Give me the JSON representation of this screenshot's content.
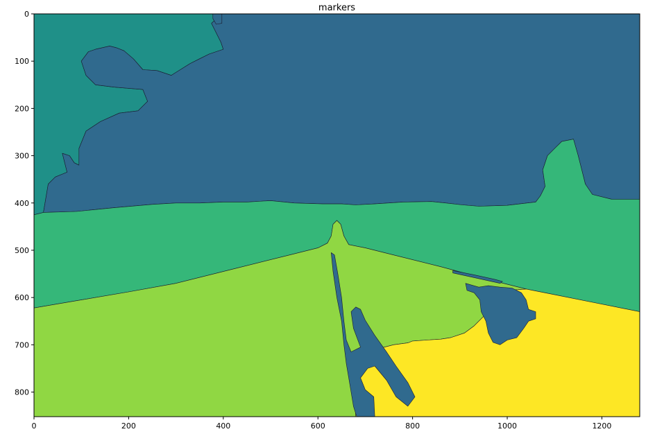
{
  "chart_data": {
    "type": "heatmap",
    "title": "markers",
    "xlabel": "",
    "ylabel": "",
    "xlim": [
      0,
      1280
    ],
    "ylim": [
      852,
      0
    ],
    "x_ticks": [
      0,
      200,
      400,
      600,
      800,
      1000,
      1200
    ],
    "x_tick_labels": [
      "0",
      "200",
      "400",
      "600",
      "800",
      "1000",
      "1200"
    ],
    "y_ticks": [
      0,
      100,
      200,
      300,
      400,
      500,
      600,
      700,
      800
    ],
    "y_tick_labels": [
      "0",
      "100",
      "200",
      "300",
      "400",
      "500",
      "600",
      "700",
      "800"
    ],
    "grid": false,
    "colormap": "viridis",
    "regions": [
      {
        "marker": 1,
        "color": "#1f9088",
        "points": [
          [
            0,
            0
          ],
          [
            380,
            0
          ],
          [
            388,
            8
          ],
          [
            375,
            20
          ],
          [
            395,
            60
          ],
          [
            400,
            75
          ],
          [
            370,
            85
          ],
          [
            350,
            95
          ],
          [
            330,
            105
          ],
          [
            290,
            130
          ],
          [
            260,
            120
          ],
          [
            230,
            118
          ],
          [
            210,
            95
          ],
          [
            190,
            78
          ],
          [
            175,
            72
          ],
          [
            160,
            68
          ],
          [
            130,
            75
          ],
          [
            115,
            80
          ],
          [
            100,
            100
          ],
          [
            110,
            130
          ],
          [
            130,
            150
          ],
          [
            170,
            155
          ],
          [
            230,
            160
          ],
          [
            240,
            185
          ],
          [
            220,
            205
          ],
          [
            180,
            210
          ],
          [
            140,
            228
          ],
          [
            110,
            248
          ],
          [
            95,
            285
          ],
          [
            95,
            320
          ],
          [
            85,
            315
          ],
          [
            75,
            300
          ],
          [
            60,
            295
          ],
          [
            70,
            335
          ],
          [
            45,
            345
          ],
          [
            30,
            360
          ],
          [
            20,
            420
          ],
          [
            0,
            425
          ]
        ]
      },
      {
        "marker": 2,
        "color": "#306a8e",
        "points": [
          [
            380,
            0
          ],
          [
            1280,
            0
          ],
          [
            1280,
            392
          ],
          [
            1220,
            392
          ],
          [
            1180,
            382
          ],
          [
            1165,
            360
          ],
          [
            1160,
            340
          ],
          [
            1150,
            300
          ],
          [
            1140,
            265
          ],
          [
            1115,
            270
          ],
          [
            1100,
            285
          ],
          [
            1085,
            300
          ],
          [
            1075,
            330
          ],
          [
            1080,
            365
          ],
          [
            1070,
            385
          ],
          [
            1060,
            398
          ],
          [
            1000,
            405
          ],
          [
            940,
            407
          ],
          [
            905,
            404
          ],
          [
            870,
            400
          ],
          [
            840,
            397
          ],
          [
            780,
            398
          ],
          [
            720,
            402
          ],
          [
            680,
            404
          ],
          [
            650,
            402
          ],
          [
            610,
            402
          ],
          [
            550,
            400
          ],
          [
            500,
            395
          ],
          [
            450,
            398
          ],
          [
            400,
            398
          ],
          [
            350,
            400
          ],
          [
            300,
            400
          ],
          [
            250,
            403
          ],
          [
            170,
            410
          ],
          [
            90,
            418
          ],
          [
            20,
            420
          ],
          [
            30,
            360
          ],
          [
            45,
            345
          ],
          [
            70,
            335
          ],
          [
            60,
            295
          ],
          [
            75,
            300
          ],
          [
            85,
            315
          ],
          [
            95,
            320
          ],
          [
            95,
            285
          ],
          [
            110,
            248
          ],
          [
            140,
            228
          ],
          [
            180,
            210
          ],
          [
            220,
            205
          ],
          [
            240,
            185
          ],
          [
            230,
            160
          ],
          [
            170,
            155
          ],
          [
            130,
            150
          ],
          [
            110,
            130
          ],
          [
            100,
            100
          ],
          [
            115,
            80
          ],
          [
            130,
            75
          ],
          [
            160,
            68
          ],
          [
            175,
            72
          ],
          [
            190,
            78
          ],
          [
            210,
            95
          ],
          [
            230,
            118
          ],
          [
            260,
            120
          ],
          [
            290,
            130
          ],
          [
            330,
            105
          ],
          [
            350,
            95
          ],
          [
            370,
            85
          ],
          [
            400,
            75
          ],
          [
            395,
            60
          ],
          [
            375,
            20
          ],
          [
            388,
            8
          ]
        ]
      },
      {
        "marker": 2,
        "color": "#306a8e",
        "points": [
          [
            378,
            0
          ],
          [
            397,
            0
          ],
          [
            397,
            20
          ],
          [
            385,
            22
          ],
          [
            378,
            10
          ]
        ]
      },
      {
        "marker": 3,
        "color": "#35b779",
        "points": [
          [
            0,
            425
          ],
          [
            20,
            420
          ],
          [
            90,
            418
          ],
          [
            170,
            410
          ],
          [
            250,
            403
          ],
          [
            300,
            400
          ],
          [
            350,
            400
          ],
          [
            400,
            398
          ],
          [
            450,
            398
          ],
          [
            500,
            395
          ],
          [
            550,
            400
          ],
          [
            610,
            402
          ],
          [
            650,
            402
          ],
          [
            680,
            404
          ],
          [
            720,
            402
          ],
          [
            780,
            398
          ],
          [
            840,
            397
          ],
          [
            870,
            400
          ],
          [
            905,
            404
          ],
          [
            940,
            407
          ],
          [
            1000,
            405
          ],
          [
            1060,
            398
          ],
          [
            1070,
            385
          ],
          [
            1080,
            365
          ],
          [
            1075,
            330
          ],
          [
            1085,
            300
          ],
          [
            1100,
            285
          ],
          [
            1115,
            270
          ],
          [
            1140,
            265
          ],
          [
            1150,
            300
          ],
          [
            1160,
            340
          ],
          [
            1165,
            360
          ],
          [
            1180,
            382
          ],
          [
            1220,
            392
          ],
          [
            1280,
            392
          ],
          [
            1280,
            630
          ],
          [
            1180,
            610
          ],
          [
            1090,
            592
          ],
          [
            1040,
            582
          ],
          [
            960,
            562
          ],
          [
            860,
            535
          ],
          [
            760,
            510
          ],
          [
            700,
            495
          ],
          [
            665,
            488
          ],
          [
            655,
            470
          ],
          [
            648,
            445
          ],
          [
            640,
            437
          ],
          [
            632,
            445
          ],
          [
            628,
            470
          ],
          [
            620,
            485
          ],
          [
            600,
            495
          ],
          [
            540,
            510
          ],
          [
            420,
            540
          ],
          [
            300,
            570
          ],
          [
            200,
            588
          ],
          [
            100,
            605
          ],
          [
            0,
            622
          ]
        ]
      },
      {
        "marker": 4,
        "color": "#90d743",
        "points": [
          [
            0,
            622
          ],
          [
            100,
            605
          ],
          [
            200,
            588
          ],
          [
            300,
            570
          ],
          [
            420,
            540
          ],
          [
            540,
            510
          ],
          [
            600,
            495
          ],
          [
            620,
            485
          ],
          [
            628,
            470
          ],
          [
            632,
            445
          ],
          [
            640,
            437
          ],
          [
            648,
            445
          ],
          [
            655,
            470
          ],
          [
            665,
            488
          ],
          [
            700,
            495
          ],
          [
            760,
            510
          ],
          [
            860,
            535
          ],
          [
            960,
            562
          ],
          [
            1040,
            582
          ],
          [
            1000,
            585
          ],
          [
            980,
            590
          ],
          [
            960,
            610
          ],
          [
            950,
            640
          ],
          [
            930,
            660
          ],
          [
            910,
            675
          ],
          [
            880,
            685
          ],
          [
            860,
            688
          ],
          [
            830,
            690
          ],
          [
            800,
            692
          ],
          [
            790,
            696
          ],
          [
            760,
            700
          ],
          [
            740,
            705
          ],
          [
            720,
            710
          ],
          [
            700,
            720
          ],
          [
            690,
            740
          ],
          [
            680,
            775
          ],
          [
            678,
            810
          ],
          [
            680,
            852
          ],
          [
            0,
            852
          ]
        ]
      },
      {
        "marker": 5,
        "color": "#fde725",
        "points": [
          [
            1040,
            582
          ],
          [
            1090,
            592
          ],
          [
            1180,
            610
          ],
          [
            1280,
            630
          ],
          [
            1280,
            852
          ],
          [
            680,
            852
          ],
          [
            678,
            810
          ],
          [
            680,
            775
          ],
          [
            690,
            740
          ],
          [
            700,
            720
          ],
          [
            720,
            710
          ],
          [
            740,
            705
          ],
          [
            760,
            700
          ],
          [
            790,
            696
          ],
          [
            800,
            692
          ],
          [
            830,
            690
          ],
          [
            860,
            688
          ],
          [
            880,
            685
          ],
          [
            910,
            675
          ],
          [
            930,
            660
          ],
          [
            950,
            640
          ],
          [
            960,
            610
          ],
          [
            980,
            590
          ],
          [
            1000,
            585
          ]
        ]
      },
      {
        "marker": 2,
        "color": "#306a8e",
        "points": [
          [
            628,
            505
          ],
          [
            632,
            545
          ],
          [
            640,
            600
          ],
          [
            650,
            650
          ],
          [
            655,
            700
          ],
          [
            660,
            740
          ],
          [
            665,
            770
          ],
          [
            670,
            800
          ],
          [
            675,
            830
          ],
          [
            682,
            852
          ],
          [
            720,
            852
          ],
          [
            718,
            810
          ],
          [
            700,
            795
          ],
          [
            690,
            770
          ],
          [
            705,
            750
          ],
          [
            720,
            745
          ],
          [
            745,
            775
          ],
          [
            765,
            810
          ],
          [
            790,
            830
          ],
          [
            805,
            810
          ],
          [
            790,
            780
          ],
          [
            765,
            745
          ],
          [
            745,
            715
          ],
          [
            720,
            680
          ],
          [
            700,
            648
          ],
          [
            690,
            625
          ],
          [
            680,
            620
          ],
          [
            670,
            630
          ],
          [
            675,
            665
          ],
          [
            690,
            705
          ],
          [
            670,
            715
          ],
          [
            660,
            690
          ],
          [
            655,
            650
          ],
          [
            650,
            600
          ],
          [
            642,
            550
          ],
          [
            635,
            510
          ]
        ]
      },
      {
        "marker": 2,
        "color": "#306a8e",
        "points": [
          [
            940,
            578
          ],
          [
            960,
            575
          ],
          [
            985,
            578
          ],
          [
            1010,
            580
          ],
          [
            1030,
            590
          ],
          [
            1040,
            605
          ],
          [
            1045,
            625
          ],
          [
            1060,
            630
          ],
          [
            1060,
            645
          ],
          [
            1045,
            650
          ],
          [
            1035,
            665
          ],
          [
            1020,
            685
          ],
          [
            1000,
            690
          ],
          [
            985,
            700
          ],
          [
            970,
            695
          ],
          [
            960,
            675
          ],
          [
            955,
            650
          ],
          [
            945,
            630
          ],
          [
            942,
            605
          ],
          [
            930,
            590
          ],
          [
            915,
            585
          ],
          [
            912,
            570
          ]
        ]
      },
      {
        "marker": 2,
        "color": "#306a8e",
        "points": [
          [
            885,
            543
          ],
          [
            930,
            552
          ],
          [
            975,
            562
          ],
          [
            990,
            566
          ],
          [
            985,
            570
          ],
          [
            940,
            560
          ],
          [
            885,
            548
          ]
        ]
      }
    ]
  }
}
